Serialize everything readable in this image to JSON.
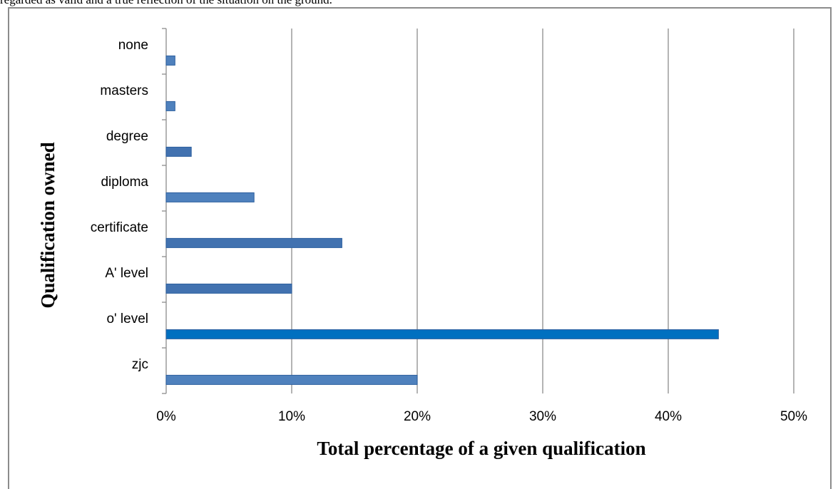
{
  "page": {
    "top_text": "regarded as valid and a true reflection of the situation on the ground."
  },
  "chart_data": {
    "type": "bar",
    "orientation": "horizontal",
    "categories": [
      "zjc",
      "o' level",
      "A' level",
      "certificate",
      "diploma",
      "degree",
      "masters",
      "none"
    ],
    "values": [
      20,
      44,
      10,
      14,
      7,
      2,
      0.7,
      0.7
    ],
    "unit": "%",
    "xlabel": "Total percentage of a given qualification",
    "ylabel": "Qualification owned",
    "xlim": [
      0,
      50
    ],
    "xticks": [
      "0%",
      "10%",
      "20%",
      "30%",
      "40%",
      "50%"
    ],
    "grid": "vertical",
    "legend": "none",
    "colors": {
      "bar_default": "#4f81bd",
      "bar_dark": "#4272b0",
      "bar_highlight": "#0070c0",
      "bar_border": "#2c5f9e",
      "grid": "#8c8c8c",
      "frame": "#8c8c8c"
    }
  }
}
